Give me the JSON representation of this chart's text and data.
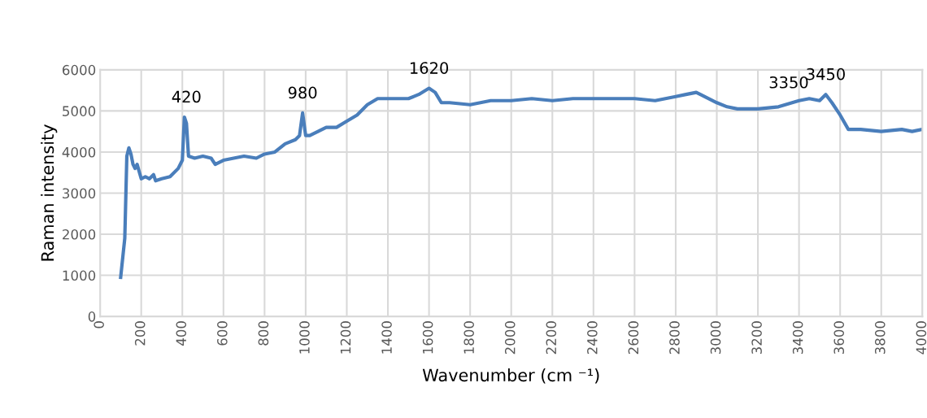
{
  "chart_data": {
    "type": "line",
    "xlabel": "Wavenumber (cm ⁻¹)",
    "ylabel": "Raman intensity",
    "xlim": [
      0,
      4000
    ],
    "xticks": [
      0,
      200,
      400,
      600,
      800,
      1000,
      1200,
      1400,
      1600,
      1800,
      2000,
      2200,
      2400,
      2600,
      2800,
      3000,
      3200,
      3400,
      3600,
      3800,
      4000
    ],
    "ylim": [
      0,
      6000
    ],
    "yticks": [
      0,
      1000,
      2000,
      3000,
      4000,
      5000,
      6000
    ],
    "grid": true,
    "marker": "none",
    "line_style": "solid",
    "series": [
      {
        "color": "#4a7ebb",
        "x": [
          100,
          120,
          130,
          140,
          150,
          160,
          170,
          180,
          200,
          220,
          240,
          260,
          270,
          300,
          340,
          380,
          400,
          410,
          420,
          430,
          460,
          500,
          540,
          560,
          600,
          650,
          700,
          760,
          800,
          850,
          900,
          950,
          970,
          985,
          1000,
          1020,
          1060,
          1100,
          1150,
          1200,
          1250,
          1300,
          1350,
          1400,
          1450,
          1500,
          1550,
          1600,
          1630,
          1660,
          1700,
          1800,
          1900,
          2000,
          2100,
          2200,
          2300,
          2400,
          2500,
          2600,
          2700,
          2800,
          2850,
          2900,
          2920,
          3000,
          3050,
          3100,
          3200,
          3300,
          3400,
          3450,
          3500,
          3530,
          3560,
          3600,
          3640,
          3700,
          3800,
          3900,
          3950,
          4000
        ],
        "values": [
          950,
          1900,
          3900,
          4100,
          3950,
          3700,
          3600,
          3700,
          3350,
          3400,
          3350,
          3450,
          3300,
          3350,
          3400,
          3600,
          3800,
          4850,
          4700,
          3900,
          3850,
          3900,
          3850,
          3700,
          3800,
          3850,
          3900,
          3850,
          3950,
          4000,
          4200,
          4300,
          4400,
          4950,
          4400,
          4400,
          4500,
          4600,
          4600,
          4750,
          4900,
          5150,
          5300,
          5300,
          5300,
          5300,
          5400,
          5550,
          5450,
          5200,
          5200,
          5150,
          5250,
          5250,
          5300,
          5250,
          5300,
          5300,
          5300,
          5300,
          5250,
          5350,
          5400,
          5450,
          5400,
          5200,
          5100,
          5050,
          5050,
          5100,
          5250,
          5300,
          5250,
          5400,
          5200,
          4900,
          4550,
          4550,
          4500,
          4550,
          4500,
          4550
        ]
      }
    ],
    "annotations": [
      {
        "text": "420",
        "x": 420,
        "y": 4850
      },
      {
        "text": "980",
        "x": 985,
        "y": 4950
      },
      {
        "text": "1620",
        "x": 1600,
        "y": 5550
      },
      {
        "text": "3350",
        "x": 3350,
        "y": 5200
      },
      {
        "text": "3450",
        "x": 3530,
        "y": 5400
      }
    ]
  }
}
